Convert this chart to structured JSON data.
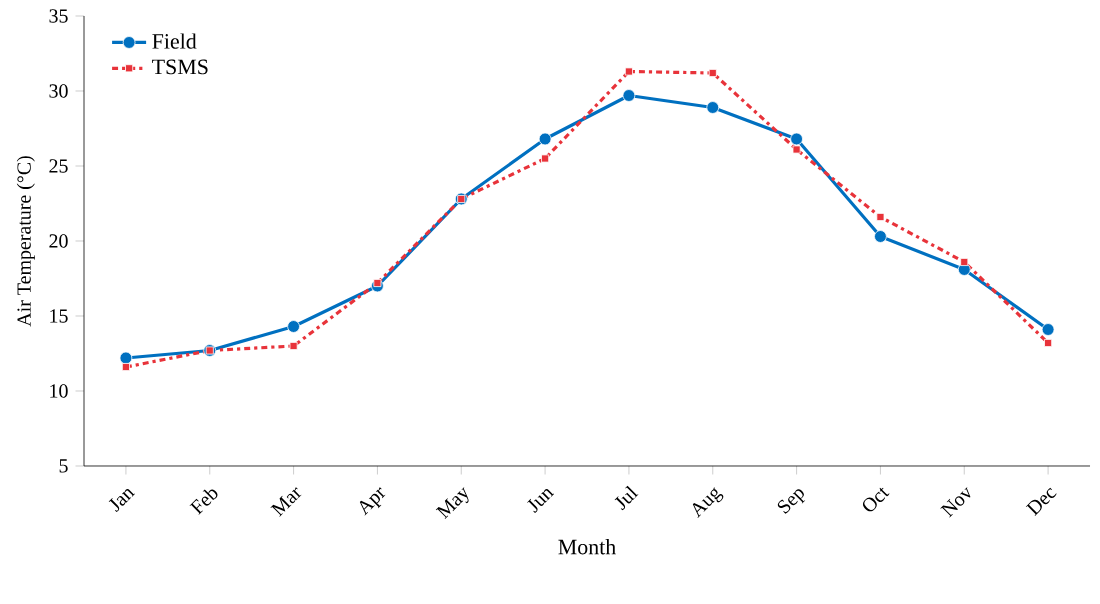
{
  "chart_data": {
    "type": "line",
    "xlabel": "Month",
    "ylabel": "Air Temperature (°C)",
    "categories": [
      "Jan",
      "Feb",
      "Mar",
      "Apr",
      "May",
      "Jun",
      "Jul",
      "Aug",
      "Sep",
      "Oct",
      "Nov",
      "Dec"
    ],
    "series": [
      {
        "name": "Field",
        "color": "#0070c0",
        "marker": "circle",
        "line_style": "solid",
        "values": [
          12.2,
          12.7,
          14.3,
          17.0,
          22.8,
          26.8,
          29.7,
          28.9,
          26.8,
          20.3,
          18.1,
          14.1
        ]
      },
      {
        "name": "TSMS",
        "color": "#e8333a",
        "marker": "square",
        "line_style": "dashdotted",
        "values": [
          11.6,
          12.7,
          13.0,
          17.2,
          22.8,
          25.5,
          31.3,
          31.2,
          26.1,
          21.6,
          18.6,
          13.2
        ]
      }
    ],
    "ylim": [
      5,
      35
    ],
    "yticks": [
      5,
      10,
      15,
      20,
      25,
      30,
      35
    ],
    "grid": false,
    "legend": "top left"
  }
}
